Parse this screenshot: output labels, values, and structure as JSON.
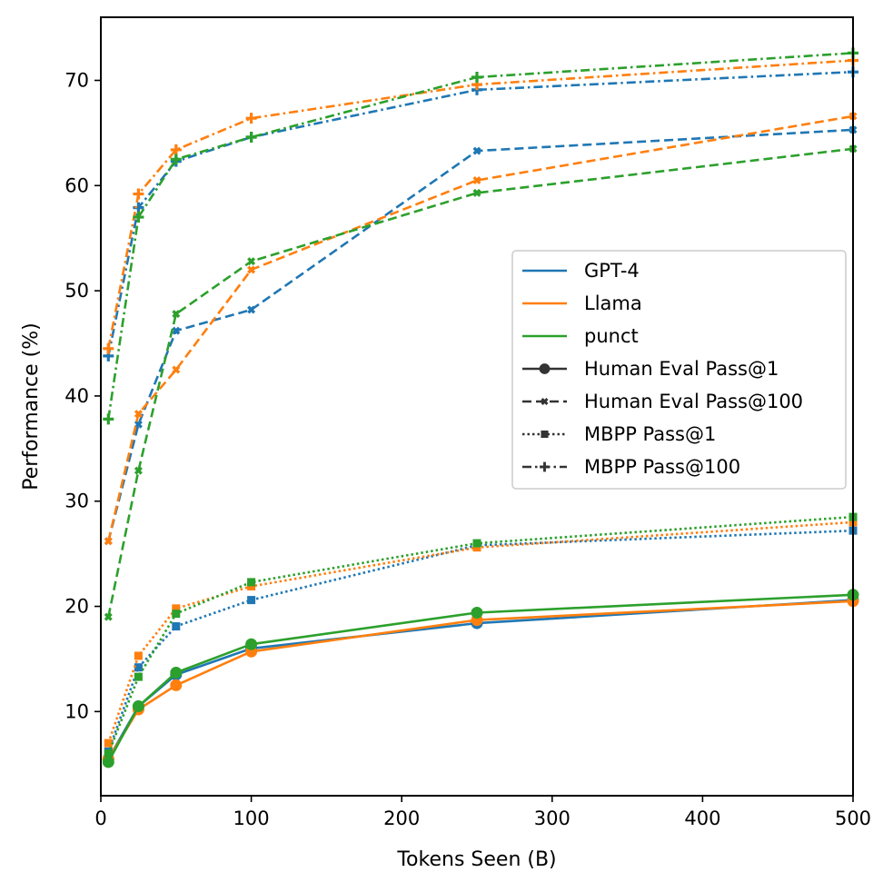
{
  "chart_data": {
    "type": "line",
    "title": "",
    "xlabel": "Tokens Seen (B)",
    "ylabel": "Performance (%)",
    "xlim": [
      0,
      500
    ],
    "ylim": [
      2,
      76
    ],
    "xticks": [
      0,
      100,
      200,
      300,
      400,
      500
    ],
    "yticks": [
      10,
      20,
      30,
      40,
      50,
      60,
      70
    ],
    "grid": false,
    "legend_position": "center-right",
    "x": [
      5,
      25,
      50,
      100,
      250,
      500
    ],
    "models": [
      {
        "name": "GPT-4",
        "color": "#1f77b4"
      },
      {
        "name": "Llama",
        "color": "#ff7f0e"
      },
      {
        "name": "punct",
        "color": "#2ca02c"
      }
    ],
    "metrics": [
      {
        "name": "Human Eval Pass@1",
        "dash": "solid",
        "marker": "circle"
      },
      {
        "name": "Human Eval Pass@100",
        "dash": "dashed",
        "marker": "x"
      },
      {
        "name": "MBPP Pass@1",
        "dash": "dotted",
        "marker": "square"
      },
      {
        "name": "MBPP Pass@100",
        "dash": "dashdot",
        "marker": "plus"
      }
    ],
    "series": [
      {
        "model": "GPT-4",
        "metric": "Human Eval Pass@1",
        "values": [
          5.5,
          10.5,
          13.5,
          16.0,
          18.4,
          20.6
        ]
      },
      {
        "model": "Llama",
        "metric": "Human Eval Pass@1",
        "values": [
          5.5,
          10.2,
          12.5,
          15.7,
          18.7,
          20.5
        ]
      },
      {
        "model": "punct",
        "metric": "Human Eval Pass@1",
        "values": [
          5.2,
          10.5,
          13.7,
          16.4,
          19.4,
          21.1
        ]
      },
      {
        "model": "GPT-4",
        "metric": "Human Eval Pass@100",
        "values": [
          26.2,
          37.3,
          46.2,
          48.2,
          63.3,
          65.3
        ]
      },
      {
        "model": "Llama",
        "metric": "Human Eval Pass@100",
        "values": [
          26.2,
          38.3,
          42.5,
          52.0,
          60.5,
          66.6
        ]
      },
      {
        "model": "punct",
        "metric": "Human Eval Pass@100",
        "values": [
          19.0,
          32.9,
          47.8,
          52.8,
          59.3,
          63.5
        ]
      },
      {
        "model": "GPT-4",
        "metric": "MBPP Pass@1",
        "values": [
          6.2,
          14.2,
          18.1,
          20.6,
          25.8,
          27.2
        ]
      },
      {
        "model": "Llama",
        "metric": "MBPP Pass@1",
        "values": [
          7.0,
          15.3,
          19.8,
          21.9,
          25.6,
          28.0
        ]
      },
      {
        "model": "punct",
        "metric": "MBPP Pass@1",
        "values": [
          6.0,
          13.3,
          19.3,
          22.3,
          26.0,
          28.5
        ]
      },
      {
        "model": "GPT-4",
        "metric": "MBPP Pass@100",
        "values": [
          43.8,
          57.9,
          62.3,
          64.6,
          69.1,
          70.8
        ]
      },
      {
        "model": "Llama",
        "metric": "MBPP Pass@100",
        "values": [
          44.5,
          59.2,
          63.4,
          66.4,
          69.6,
          71.9
        ]
      },
      {
        "model": "punct",
        "metric": "MBPP Pass@100",
        "values": [
          37.8,
          57.0,
          62.5,
          64.6,
          70.3,
          72.6
        ]
      }
    ]
  }
}
